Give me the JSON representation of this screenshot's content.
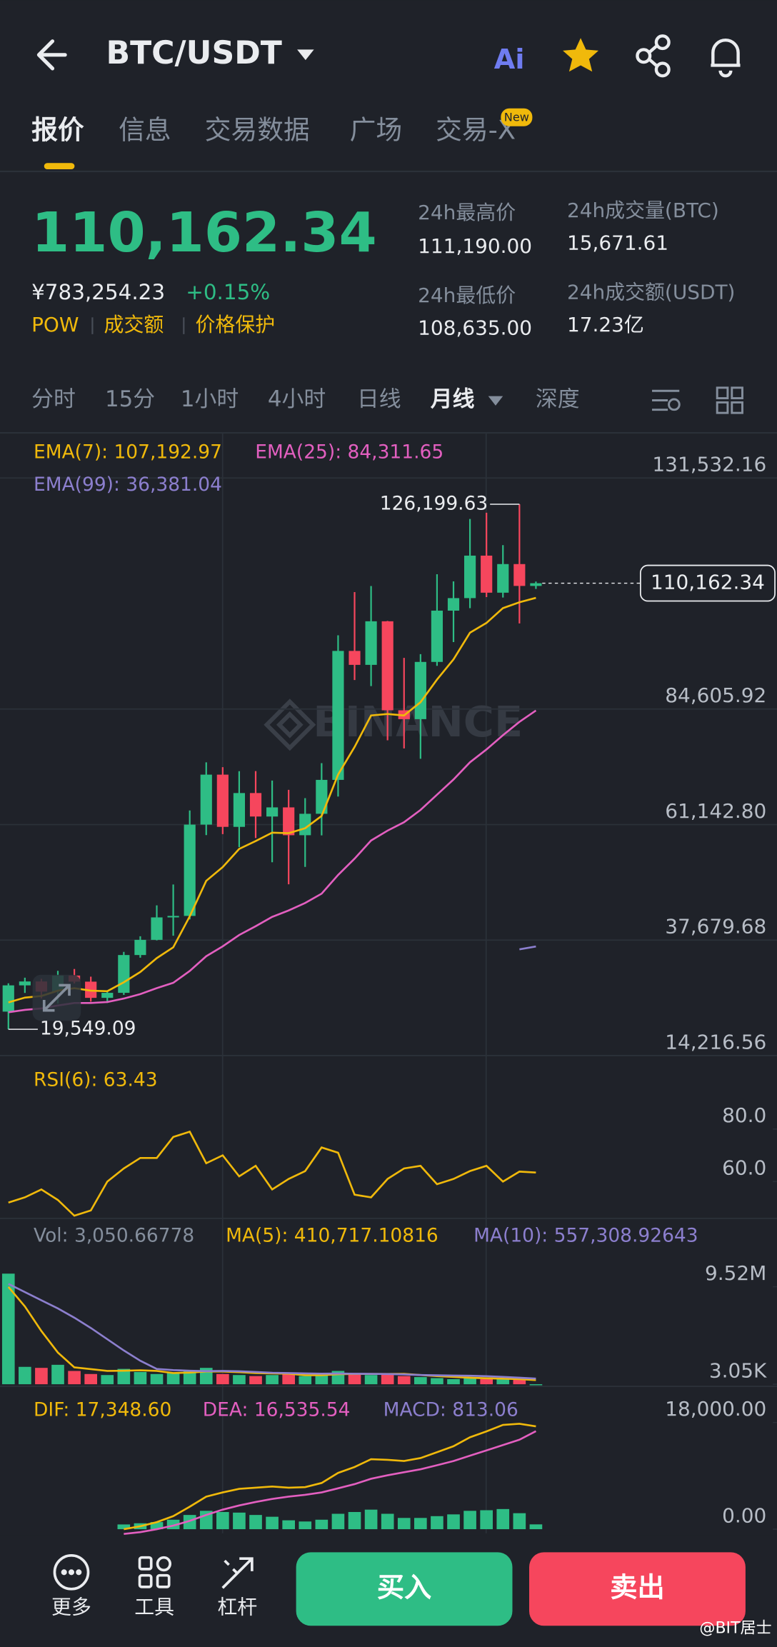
{
  "header": {
    "title": "BTC/USDT",
    "ai_icon": "Ai",
    "tabs": [
      "报价",
      "信息",
      "交易数据",
      "广场",
      "交易-X"
    ],
    "badge": "New"
  },
  "quote": {
    "last": "110,162.34",
    "cny": "¥783,254.23",
    "change": "+0.15%",
    "tags": [
      "POW",
      "成交额",
      "价格保护"
    ],
    "stats": [
      {
        "label": "24h最高价",
        "value": "111,190.00"
      },
      {
        "label": "24h成交量(BTC)",
        "value": "15,671.61"
      },
      {
        "label": "24h最低价",
        "value": "108,635.00"
      },
      {
        "label": "24h成交额(USDT)",
        "value": "17.23亿"
      }
    ]
  },
  "intervals": [
    "分时",
    "15分",
    "1小时",
    "4小时",
    "日线",
    "月线",
    "深度"
  ],
  "chart_data": [
    {
      "type": "candlestick",
      "watermark": "BINANCE",
      "up_color": "#2ebd85",
      "down_color": "#f6465d",
      "open": [
        23141,
        28478,
        29268,
        27210,
        30472,
        29232,
        25940,
        26962,
        34639,
        37723,
        42283,
        42582,
        61130,
        71280,
        60672,
        67540,
        62772,
        64628,
        58974,
        63328,
        70215,
        96408,
        93576,
        102429,
        84350,
        82550,
        94172,
        104591,
        107135,
        115764,
        108236,
        114049,
        109608
      ],
      "high": [
        28900,
        30036,
        29820,
        31431,
        31804,
        30244,
        27483,
        35280,
        38450,
        44729,
        48969,
        64000,
        73777,
        72797,
        71979,
        71997,
        70079,
        68185,
        66498,
        73620,
        99588,
        108353,
        109588,
        102500,
        95000,
        95758,
        111980,
        110530,
        123218,
        124474,
        117900,
        126199.63,
        110500
      ],
      "low": [
        19549.09,
        26942,
        25811,
        24800,
        28861,
        25166,
        24901,
        26538,
        34097,
        37617,
        38555,
        41884,
        59005,
        59191,
        56552,
        58402,
        53485,
        49000,
        52550,
        58946,
        66835,
        90500,
        89256,
        78258,
        76606,
        74508,
        93377,
        98200,
        105100,
        107350,
        107255,
        102000,
        109000
      ],
      "close": [
        28478,
        29268,
        27210,
        30472,
        29232,
        25940,
        26962,
        34639,
        37723,
        42283,
        42582,
        61130,
        71280,
        60672,
        67540,
        62772,
        64628,
        58974,
        63328,
        70215,
        96408,
        93576,
        102429,
        84350,
        82550,
        94172,
        104591,
        107135,
        115764,
        108236,
        114049,
        109608,
        110162.34
      ],
      "lines": [
        {
          "name": "EMA(7): 107,192.97",
          "color": "#f0b90b",
          "values": [
            25000,
            26000,
            26300,
            27400,
            27900,
            27400,
            27300,
            29100,
            31200,
            34000,
            36200,
            42500,
            49700,
            52500,
            56200,
            57800,
            59500,
            59400,
            60400,
            62900,
            71300,
            76900,
            83300,
            83600,
            83300,
            86000,
            90600,
            94700,
            100100,
            102100,
            105100,
            106300,
            107192.97
          ]
        },
        {
          "name": "EMA(25): 84,311.65",
          "color": "#e35fc0",
          "values": [
            23000,
            23500,
            23800,
            24400,
            24900,
            24900,
            25100,
            25800,
            26700,
            27900,
            29000,
            31400,
            34400,
            36400,
            38700,
            40500,
            42400,
            43700,
            45200,
            47100,
            50900,
            54200,
            57900,
            59900,
            61600,
            64100,
            67200,
            70300,
            73800,
            76400,
            79300,
            82000,
            84311.65
          ]
        },
        {
          "name": "EMA(99): 36,381.04",
          "color": "#8c7fce",
          "values": [
            null,
            null,
            null,
            null,
            null,
            null,
            null,
            null,
            null,
            null,
            null,
            null,
            null,
            null,
            null,
            null,
            null,
            null,
            null,
            null,
            null,
            null,
            null,
            null,
            null,
            null,
            null,
            null,
            null,
            null,
            null,
            35800,
            36381.04
          ]
        }
      ],
      "high_label": "126,199.63",
      "low_label": "19,549.09",
      "last_label": "110,162.34",
      "ylim": [
        14216.56,
        140700
      ],
      "yticks": [
        {
          "value": 131532.16,
          "label": "131,532.16"
        },
        {
          "value": 84605.92,
          "label": "84,605.92"
        },
        {
          "value": 61142.8,
          "label": "61,142.80"
        },
        {
          "value": 37679.68,
          "label": "37,679.68"
        },
        {
          "value": 14216.56,
          "label": "14,216.56"
        }
      ],
      "grid": true
    },
    {
      "type": "line",
      "lines": [
        {
          "name": "RSI(6): 63.43",
          "color": "#f0b90b",
          "values": [
            52,
            54,
            57,
            53,
            47,
            49,
            60,
            65,
            69,
            69,
            77,
            79,
            67,
            70,
            62,
            66,
            57,
            61,
            64,
            73,
            71,
            55,
            54,
            61,
            65,
            66,
            59,
            61,
            64,
            66,
            60,
            63.8,
            63.43
          ]
        }
      ],
      "ylim": [
        46,
        108
      ],
      "yticks": [
        {
          "value": 80,
          "label": "80.0"
        },
        {
          "value": 60,
          "label": "60.0"
        }
      ],
      "grid": false
    },
    {
      "type": "bar",
      "bar_label": "Vol: 3,050.66778",
      "bar_label_color": "#848e9c",
      "values": [
        10800000,
        1700000,
        1600000,
        1900000,
        1300000,
        1000000,
        900000,
        1500000,
        1200000,
        1000000,
        1100000,
        1300000,
        1600000,
        1000000,
        900000,
        800000,
        900000,
        1000000,
        800000,
        900000,
        1300000,
        1100000,
        900000,
        1000000,
        800000,
        700000,
        600000,
        500000,
        600000,
        500000,
        500000,
        600000,
        3050.66778
      ],
      "lines": [
        {
          "name": "MA(5): 410,717.10816",
          "color": "#f0b90b",
          "values": [
            9500000,
            7600000,
            5200000,
            3100000,
            1650000,
            1480000,
            1300000,
            1320000,
            1360000,
            1300000,
            1100000,
            1140000,
            1240000,
            1240000,
            1180000,
            1100000,
            1060000,
            1040000,
            880000,
            880000,
            980000,
            1000000,
            1000000,
            1000000,
            1020000,
            900000,
            800000,
            720000,
            640000,
            580000,
            540000,
            500000,
            410717.10816
          ]
        },
        {
          "name": "MA(10): 557,308.92643",
          "color": "#8c7fce",
          "values": [
            9800000,
            9000000,
            8200000,
            7400000,
            6500000,
            5500000,
            4400000,
            3300000,
            2300000,
            1500000,
            1380000,
            1320000,
            1280000,
            1300000,
            1270000,
            1200000,
            1120000,
            1100000,
            1060000,
            1040000,
            1050000,
            1030000,
            1010000,
            990000,
            960000,
            900000,
            870000,
            850000,
            830000,
            790000,
            720000,
            640000,
            557308.92643
          ]
        }
      ],
      "ylim": [
        0,
        16200000
      ],
      "yticks": [
        {
          "value": 9520000,
          "label": "9.52M"
        },
        {
          "value": 3050,
          "label": "3.05K"
        }
      ],
      "grid": false
    },
    {
      "type": "bar",
      "bar_label": "MACD: 813.06",
      "bar_label_color": "#8c7fce",
      "color": "#2ebd85",
      "values": [
        null,
        null,
        null,
        null,
        null,
        null,
        null,
        800,
        1000,
        1200,
        1600,
        2400,
        3100,
        2900,
        2800,
        2400,
        2100,
        1500,
        1300,
        1600,
        2600,
        2900,
        3300,
        2600,
        1900,
        1900,
        2200,
        2500,
        3100,
        3200,
        3400,
        2700,
        813.06
      ],
      "lines": [
        {
          "name": "DIF: 17,348.60",
          "color": "#f0b90b",
          "values": [
            null,
            null,
            null,
            null,
            null,
            null,
            null,
            0,
            500,
            1200,
            2200,
            3800,
            5500,
            6200,
            6800,
            7000,
            7200,
            7000,
            7100,
            7800,
            9500,
            10500,
            11800,
            11700,
            11500,
            12000,
            13000,
            14000,
            15500,
            16500,
            17600,
            17800,
            17348.6
          ]
        },
        {
          "name": "DEA: 16,535.54",
          "color": "#e35fc0",
          "values": [
            null,
            null,
            null,
            null,
            null,
            null,
            null,
            -800,
            -500,
            0,
            600,
            1400,
            2400,
            3300,
            4000,
            4600,
            5100,
            5500,
            5800,
            6200,
            6900,
            7600,
            8500,
            9100,
            9600,
            10100,
            10800,
            11500,
            12400,
            13300,
            14200,
            15100,
            16535.54
          ]
        }
      ],
      "ylim": [
        -350,
        24100
      ],
      "yticks": [
        {
          "value": 18000,
          "label": "18,000.00"
        },
        {
          "value": 0,
          "label": "0.00"
        }
      ],
      "grid": false
    }
  ],
  "nav": {
    "items": [
      "更多",
      "工具",
      "杠杆"
    ],
    "buy": "买入",
    "sell": "卖出",
    "watermark": "@BIT居士"
  }
}
